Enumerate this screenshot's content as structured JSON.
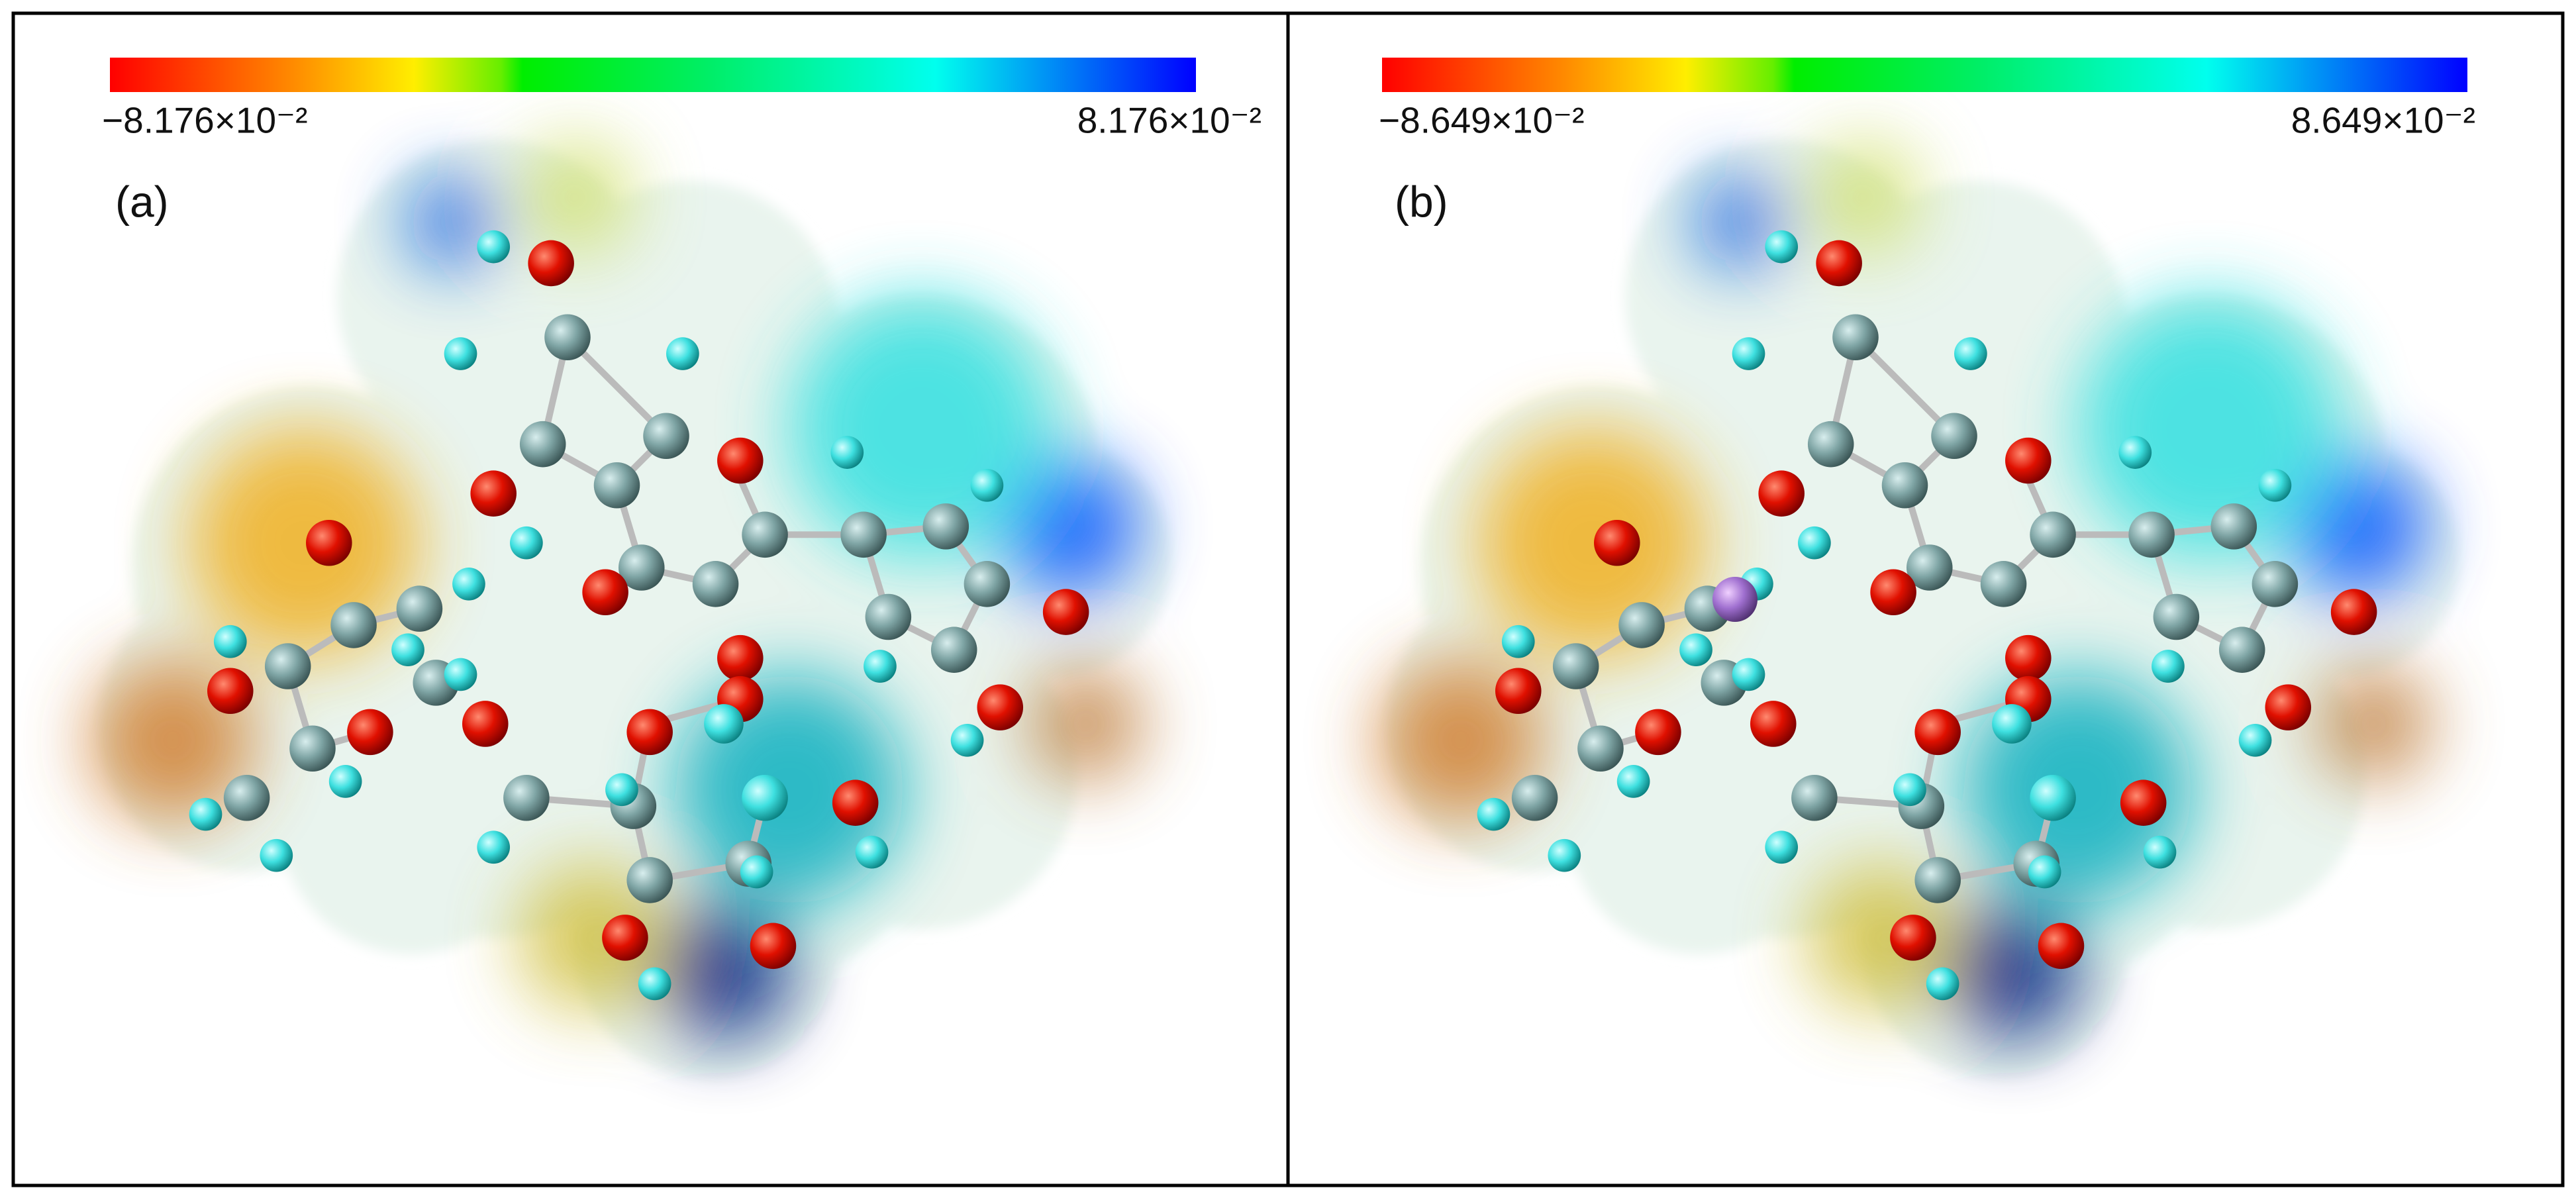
{
  "panels": [
    {
      "label": "(a)",
      "scale_min": "−8.176×10⁻²",
      "scale_max": "8.176×10⁻²"
    },
    {
      "label": "(b)",
      "scale_min": "−8.649×10⁻²",
      "scale_max": "8.649×10⁻²"
    }
  ]
}
